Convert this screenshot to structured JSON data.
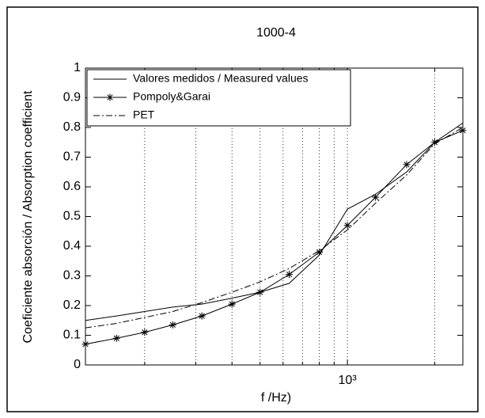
{
  "chart_data": {
    "type": "line",
    "title": "1000-4",
    "xlabel": "f /Hz)",
    "ylabel": "Coeficiente absorción / Absorption coefficient",
    "x": [
      125,
      160,
      200,
      250,
      315,
      400,
      500,
      630,
      800,
      1000,
      1250,
      1600,
      2000,
      2500
    ],
    "xlim": [
      125,
      2500
    ],
    "xscale": "log",
    "xticks": [
      {
        "value": 1000,
        "label": "10³"
      }
    ],
    "xminorticks": [
      200,
      300,
      400,
      500,
      600,
      700,
      800,
      900,
      2000
    ],
    "ylim": [
      0,
      1
    ],
    "yticks": [
      0,
      0.1,
      0.2,
      0.3,
      0.4,
      0.5,
      0.6,
      0.7,
      0.8,
      0.9,
      1
    ],
    "grid": "x",
    "legend": "upper left",
    "series": [
      {
        "name": "Valores medidos / Measured values",
        "color": "#000000",
        "style": "solid",
        "marker": "none",
        "values": [
          0.15,
          0.165,
          0.18,
          0.195,
          0.205,
          0.225,
          0.245,
          0.275,
          0.37,
          0.525,
          0.575,
          0.65,
          0.75,
          0.815
        ]
      },
      {
        "name": "Pompoly&Garai",
        "color": "#000000",
        "style": "solid",
        "marker": "star",
        "values": [
          0.07,
          0.09,
          0.11,
          0.135,
          0.165,
          0.205,
          0.245,
          0.305,
          0.38,
          0.47,
          0.565,
          0.675,
          0.75,
          0.79
        ]
      },
      {
        "name": "PET",
        "color": "#000000",
        "style": "dashdot",
        "marker": "none",
        "values": [
          0.125,
          0.14,
          0.16,
          0.18,
          0.21,
          0.245,
          0.28,
          0.325,
          0.385,
          0.455,
          0.545,
          0.64,
          0.745,
          0.8
        ]
      }
    ]
  }
}
